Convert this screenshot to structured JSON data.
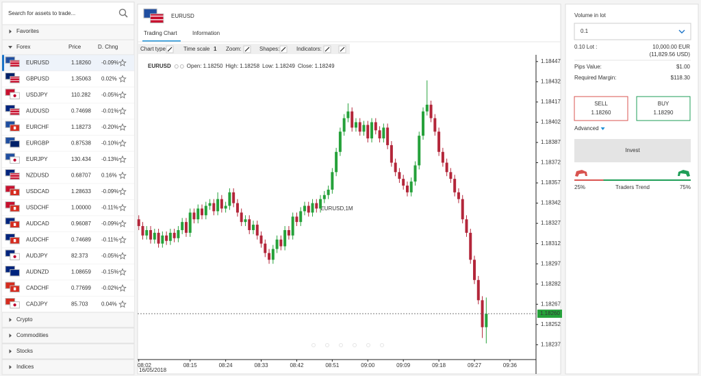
{
  "search_placeholder": "Search for assets to trade...",
  "sidebar": {
    "favorites": "Favorites",
    "forex": "Forex",
    "price_header": "Price",
    "change_header": "D. Chng",
    "pairs": [
      {
        "symbol": "EURUSD",
        "price": "1.18260",
        "change": "-0.09%"
      },
      {
        "symbol": "GBPUSD",
        "price": "1.35063",
        "change": "0.02%"
      },
      {
        "symbol": "USDJPY",
        "price": "110.282",
        "change": "-0.05%"
      },
      {
        "symbol": "AUDUSD",
        "price": "0.74698",
        "change": "-0.01%",
        "color": "#1e9e57"
      },
      {
        "symbol": "EURCHF",
        "price": "1.18273",
        "change": "-0.20%"
      },
      {
        "symbol": "EURGBP",
        "price": "0.87538",
        "change": "-0.10%"
      },
      {
        "symbol": "EURJPY",
        "price": "130.434",
        "change": "-0.13%"
      },
      {
        "symbol": "NZDUSD",
        "price": "0.68707",
        "change": "0.16%"
      },
      {
        "symbol": "USDCAD",
        "price": "1.28633",
        "change": "-0.09%"
      },
      {
        "symbol": "USDCHF",
        "price": "1.00000",
        "change": "-0.11%"
      },
      {
        "symbol": "AUDCAD",
        "price": "0.96087",
        "change": "-0.09%",
        "color": "#d0342c"
      },
      {
        "symbol": "AUDCHF",
        "price": "0.74689",
        "change": "-0.11%"
      },
      {
        "symbol": "AUDJPY",
        "price": "82.373",
        "change": "-0.05%"
      },
      {
        "symbol": "AUDNZD",
        "price": "1.08659",
        "change": "-0.15%",
        "color": "#1e9e57"
      },
      {
        "symbol": "CADCHF",
        "price": "0.77699",
        "change": "-0.02%"
      },
      {
        "symbol": "CADJPY",
        "price": "85.703",
        "change": "0.04%"
      }
    ],
    "other_groups": [
      "Crypto",
      "Commodities",
      "Stocks",
      "Indices"
    ]
  },
  "asset": {
    "symbol": "EURUSD",
    "tabs": [
      "Trading Chart",
      "Information"
    ],
    "toolbar": [
      "Chart type:",
      "Time scale",
      "1",
      "Zoom:",
      "Shapes:",
      "Indicators:"
    ]
  },
  "chart_data": {
    "type": "candlestick",
    "symbol": "EURUSD",
    "ohlc_readout": [
      {
        "label": "Open:",
        "value": "1.18250"
      },
      {
        "label": "High:",
        "value": "1.18258"
      },
      {
        "label": "Low:",
        "value": "1.18249"
      },
      {
        "label": "Close:",
        "value": "1.18249"
      }
    ],
    "watermark": "EURUSD,1M",
    "date_label": "16/05/2018",
    "up_color": "#25a13a",
    "down_color": "#b3263a",
    "x": [
      2,
      3,
      4,
      5,
      6,
      7,
      8,
      9,
      10,
      11,
      12,
      13,
      14,
      15,
      16,
      17,
      18,
      19,
      20,
      21,
      22,
      23,
      24,
      25,
      26,
      27,
      28,
      29,
      30,
      31,
      32,
      33,
      34,
      35,
      36,
      37,
      38,
      39,
      40,
      41,
      42,
      43,
      44,
      45,
      46,
      47,
      48,
      49,
      50,
      51,
      52,
      53,
      54,
      55,
      56,
      57,
      58,
      59,
      60,
      61,
      62,
      63,
      64,
      65,
      66,
      67,
      68,
      69,
      70,
      71,
      72,
      73,
      74,
      75,
      76,
      77,
      78,
      79,
      80,
      81,
      82,
      83,
      84,
      85,
      86,
      87,
      88,
      89,
      90
    ],
    "open": [
      1.1833,
      1.18325,
      1.18318,
      1.18322,
      1.18315,
      1.1832,
      1.18312,
      1.18318,
      1.18314,
      1.1832,
      1.18316,
      1.18322,
      1.18328,
      1.1832,
      1.18335,
      1.1833,
      1.18338,
      1.18333,
      1.1834,
      1.18342,
      1.18336,
      1.18345,
      1.18338,
      1.1834,
      1.1835,
      1.18342,
      1.18335,
      1.18328,
      1.1833,
      1.18322,
      1.18326,
      1.18318,
      1.18312,
      1.18305,
      1.183,
      1.18308,
      1.18315,
      1.1831,
      1.18322,
      1.18318,
      1.18332,
      1.18328,
      1.18336,
      1.1834,
      1.18335,
      1.18342,
      1.18338,
      1.18345,
      1.18348,
      1.18352,
      1.18365,
      1.1838,
      1.18395,
      1.18405,
      1.1841,
      1.18398,
      1.18402,
      1.18395,
      1.184,
      1.1839,
      1.18402,
      1.18396,
      1.1839,
      1.18398,
      1.18385,
      1.18372,
      1.18365,
      1.1836,
      1.18355,
      1.1835,
      1.18358,
      1.1837,
      1.18392,
      1.1841,
      1.18415,
      1.18405,
      1.18395,
      1.1838,
      1.18372,
      1.18365,
      1.1836,
      1.1835,
      1.18345,
      1.1833,
      1.1832,
      1.183,
      1.18285,
      1.1827,
      1.1825
    ],
    "high": [
      1.18333,
      1.18328,
      1.18325,
      1.18325,
      1.18323,
      1.18323,
      1.18321,
      1.18321,
      1.18323,
      1.18323,
      1.18325,
      1.18331,
      1.18331,
      1.18338,
      1.18338,
      1.18341,
      1.18341,
      1.18343,
      1.18345,
      1.18345,
      1.1835,
      1.18348,
      1.18343,
      1.18353,
      1.18353,
      1.18345,
      1.18338,
      1.18333,
      1.18333,
      1.18329,
      1.18329,
      1.18321,
      1.18315,
      1.18308,
      1.18311,
      1.18318,
      1.18318,
      1.18325,
      1.18325,
      1.18335,
      1.18335,
      1.18339,
      1.18343,
      1.18343,
      1.18345,
      1.18345,
      1.18348,
      1.18351,
      1.18355,
      1.18368,
      1.18383,
      1.18398,
      1.18408,
      1.18416,
      1.18413,
      1.18405,
      1.18405,
      1.18403,
      1.18403,
      1.18405,
      1.18405,
      1.18399,
      1.18401,
      1.18401,
      1.18388,
      1.18375,
      1.18368,
      1.18363,
      1.18358,
      1.18361,
      1.18373,
      1.18395,
      1.18413,
      1.18433,
      1.18418,
      1.18408,
      1.18398,
      1.18383,
      1.18375,
      1.18368,
      1.18363,
      1.18353,
      1.18348,
      1.18333,
      1.18323,
      1.18303,
      1.18288,
      1.18273,
      1.18272
    ],
    "low": [
      1.18322,
      1.18315,
      1.18315,
      1.18312,
      1.18312,
      1.18309,
      1.18309,
      1.18311,
      1.18311,
      1.18313,
      1.18313,
      1.18319,
      1.18317,
      1.18317,
      1.18327,
      1.18327,
      1.1833,
      1.1833,
      1.18337,
      1.18333,
      1.18333,
      1.18335,
      1.18335,
      1.18337,
      1.18339,
      1.18332,
      1.18325,
      1.18325,
      1.18319,
      1.18319,
      1.18315,
      1.18309,
      1.18302,
      1.18297,
      1.18297,
      1.18305,
      1.18307,
      1.18307,
      1.18315,
      1.18315,
      1.18325,
      1.18325,
      1.18333,
      1.18332,
      1.18332,
      1.18335,
      1.18335,
      1.18342,
      1.18345,
      1.18349,
      1.18362,
      1.18377,
      1.18392,
      1.18402,
      1.18395,
      1.18395,
      1.18392,
      1.18392,
      1.18387,
      1.18387,
      1.18393,
      1.18387,
      1.18387,
      1.18382,
      1.18369,
      1.18362,
      1.18357,
      1.18352,
      1.18347,
      1.18347,
      1.18355,
      1.18367,
      1.18389,
      1.18407,
      1.18402,
      1.18392,
      1.18377,
      1.18369,
      1.18362,
      1.18357,
      1.18347,
      1.18342,
      1.18327,
      1.18317,
      1.18297,
      1.18282,
      1.18267,
      1.18242,
      1.18238
    ],
    "close": [
      1.18325,
      1.18318,
      1.18322,
      1.18315,
      1.1832,
      1.18312,
      1.18318,
      1.18314,
      1.1832,
      1.18316,
      1.18322,
      1.18328,
      1.1832,
      1.18335,
      1.1833,
      1.18338,
      1.18333,
      1.1834,
      1.18342,
      1.18336,
      1.18345,
      1.18338,
      1.1834,
      1.1835,
      1.18342,
      1.18335,
      1.18328,
      1.1833,
      1.18322,
      1.18326,
      1.18318,
      1.18312,
      1.18305,
      1.183,
      1.18308,
      1.18315,
      1.1831,
      1.18322,
      1.18318,
      1.18332,
      1.18328,
      1.18336,
      1.1834,
      1.18335,
      1.18342,
      1.18338,
      1.18345,
      1.18348,
      1.18352,
      1.18365,
      1.1838,
      1.18395,
      1.18405,
      1.1841,
      1.18398,
      1.18402,
      1.18395,
      1.184,
      1.1839,
      1.18402,
      1.18396,
      1.1839,
      1.18398,
      1.18385,
      1.18372,
      1.18365,
      1.1836,
      1.18355,
      1.1835,
      1.18358,
      1.1837,
      1.18392,
      1.1841,
      1.18415,
      1.18405,
      1.18395,
      1.1838,
      1.18372,
      1.18365,
      1.1836,
      1.1835,
      1.18345,
      1.1833,
      1.1832,
      1.183,
      1.18285,
      1.1827,
      1.1825,
      1.1826
    ],
    "xlim": [
      1.7,
      102.6
    ],
    "xticks": [
      {
        "value": 2,
        "label": "08:02"
      },
      {
        "value": 15,
        "label": "08:15"
      },
      {
        "value": 24,
        "label": "08:24"
      },
      {
        "value": 33,
        "label": "08:33"
      },
      {
        "value": 42,
        "label": "08:42"
      },
      {
        "value": 51,
        "label": "08:51"
      },
      {
        "value": 60,
        "label": "09:00"
      },
      {
        "value": 69,
        "label": "09:09"
      },
      {
        "value": 78,
        "label": "09:18"
      },
      {
        "value": 87,
        "label": "09:27"
      },
      {
        "value": 96,
        "label": "09:36"
      }
    ],
    "ylim": [
      1.18226,
      1.18452
    ],
    "yticks": [
      1.18447,
      1.18432,
      1.18417,
      1.18402,
      1.18387,
      1.18372,
      1.18357,
      1.18342,
      1.18327,
      1.18312,
      1.18297,
      1.18282,
      1.18267,
      1.18252,
      1.18237
    ],
    "last_price": {
      "value": 1.1826,
      "label": "1.18260"
    }
  },
  "trade": {
    "volume_label": "Volume in lot",
    "volume": "0.1",
    "lot_label": "0.10 Lot :",
    "lot_value": "10,000.00 EUR",
    "lot_usd": "(11,829.56 USD)",
    "pips_label": "Pips Value:",
    "pips_value": "$1.00",
    "margin_label": "Required Margin:",
    "margin_value": "$118.30",
    "sell_label": "SELL",
    "sell_price": "1.18260",
    "buy_label": "BUY",
    "buy_price": "1.18290",
    "advanced": "Advanced",
    "invest": "Invest",
    "traders_trend": {
      "label": "Traders Trend",
      "sell": {
        "value": 25,
        "label": "25%"
      },
      "buy": {
        "value": 75,
        "label": "75%"
      }
    }
  }
}
